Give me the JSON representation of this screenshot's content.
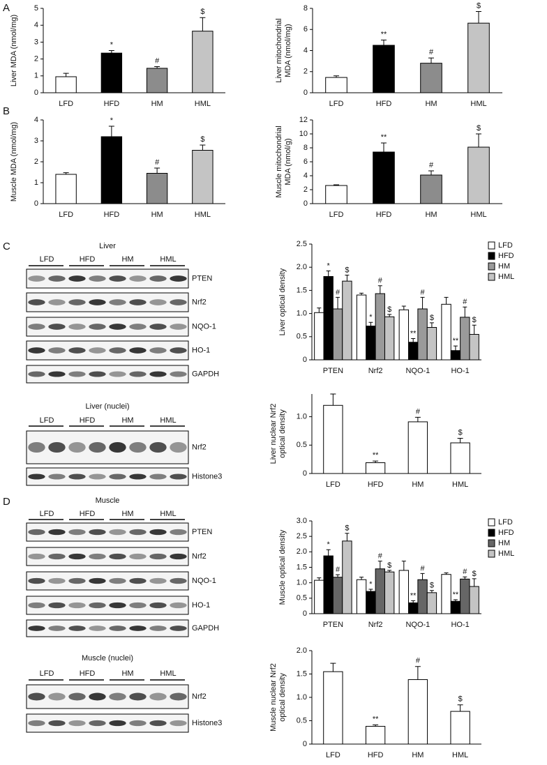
{
  "panels": [
    "A",
    "B",
    "C",
    "D"
  ],
  "chart_data": [
    {
      "type": "bar",
      "ylabel": [
        "Liver MDA (nmol/mg)"
      ],
      "categories": [
        "LFD",
        "HFD",
        "HM",
        "HML"
      ],
      "values": [
        0.95,
        2.35,
        1.45,
        3.65
      ],
      "errors": [
        0.2,
        0.15,
        0.1,
        0.8
      ],
      "markers": [
        null,
        "*",
        "#",
        "$"
      ],
      "colors": [
        "#ffffff",
        "#000000",
        "#8c8c8c",
        "#c4c4c4"
      ],
      "ylim": [
        0,
        5
      ],
      "yticks": [
        0,
        1,
        2,
        3,
        4,
        5
      ]
    },
    {
      "type": "bar",
      "ylabel": [
        "Liver mitochondrial",
        "MDA (nmol/mg)"
      ],
      "categories": [
        "LFD",
        "HFD",
        "HM",
        "HML"
      ],
      "values": [
        1.45,
        4.5,
        2.8,
        6.6
      ],
      "errors": [
        0.15,
        0.5,
        0.5,
        1.1
      ],
      "markers": [
        null,
        "**",
        "#",
        "$"
      ],
      "colors": [
        "#ffffff",
        "#000000",
        "#8c8c8c",
        "#c4c4c4"
      ],
      "ylim": [
        0,
        8
      ],
      "yticks": [
        0,
        2,
        4,
        6,
        8
      ]
    },
    {
      "type": "bar",
      "ylabel": [
        "Muscle MDA (nmol/mg)"
      ],
      "categories": [
        "LFD",
        "HFD",
        "HM",
        "HML"
      ],
      "values": [
        1.4,
        3.2,
        1.45,
        2.55
      ],
      "errors": [
        0.08,
        0.5,
        0.25,
        0.25
      ],
      "markers": [
        null,
        "*",
        "#",
        "$"
      ],
      "colors": [
        "#ffffff",
        "#000000",
        "#8c8c8c",
        "#c4c4c4"
      ],
      "ylim": [
        0,
        4
      ],
      "yticks": [
        0,
        1,
        2,
        3,
        4
      ]
    },
    {
      "type": "bar",
      "ylabel": [
        "Muscle mitochondrial",
        "MDA (nmol/g)"
      ],
      "categories": [
        "LFD",
        "HFD",
        "HM",
        "HML"
      ],
      "values": [
        2.6,
        7.4,
        4.1,
        8.1
      ],
      "errors": [
        0.1,
        1.3,
        0.6,
        1.9
      ],
      "markers": [
        null,
        "**",
        "#",
        "$"
      ],
      "colors": [
        "#ffffff",
        "#000000",
        "#8c8c8c",
        "#c4c4c4"
      ],
      "ylim": [
        0,
        12
      ],
      "yticks": [
        0,
        2,
        4,
        6,
        8,
        10,
        12
      ]
    },
    {
      "type": "grouped_bar",
      "ylabel": [
        "Liver optical density"
      ],
      "categories": [
        "PTEN",
        "Nrf2",
        "NQO-1",
        "HO-1"
      ],
      "series": [
        {
          "name": "LFD",
          "color": "#ffffff",
          "values": [
            1.02,
            1.4,
            1.08,
            1.2
          ],
          "errors": [
            0.1,
            0.04,
            0.08,
            0.15
          ],
          "markers": [
            null,
            null,
            null,
            null
          ]
        },
        {
          "name": "HFD",
          "color": "#000000",
          "values": [
            1.8,
            0.73,
            0.38,
            0.2
          ],
          "errors": [
            0.12,
            0.08,
            0.08,
            0.1
          ],
          "markers": [
            "*",
            "*",
            "**",
            "**"
          ]
        },
        {
          "name": "HM",
          "color": "#9a9a9a",
          "values": [
            1.1,
            1.43,
            1.1,
            0.92
          ],
          "errors": [
            0.25,
            0.17,
            0.25,
            0.22
          ],
          "markers": [
            "#",
            "#",
            "#",
            "#"
          ]
        },
        {
          "name": "HML",
          "color": "#c4c4c4",
          "values": [
            1.7,
            0.93,
            0.7,
            0.55
          ],
          "errors": [
            0.13,
            0.05,
            0.1,
            0.2
          ],
          "markers": [
            "$",
            "$",
            "$",
            "$"
          ]
        }
      ],
      "legend": "upper right",
      "ylim": [
        0,
        2.5
      ],
      "yticks": [
        0,
        0.5,
        {
          "value": 1,
          "label": "1.0"
        },
        1.5,
        {
          "value": 2,
          "label": "2.0"
        },
        2.5
      ]
    },
    {
      "type": "bar",
      "ylabel": [
        "Liver nuclear Nrf2",
        "optical density"
      ],
      "categories": [
        "LFD",
        "HFD",
        "HM",
        "HML"
      ],
      "values": [
        1.2,
        0.19,
        0.91,
        0.54
      ],
      "errors": [
        0.2,
        0.03,
        0.08,
        0.08
      ],
      "markers": [
        null,
        "**",
        "#",
        "$"
      ],
      "colors": [
        "#ffffff",
        "#ffffff",
        "#ffffff",
        "#ffffff"
      ],
      "ylim": [
        0,
        1.4
      ],
      "yticks": [
        0,
        0.5,
        {
          "value": 1,
          "label": "1.0"
        }
      ]
    },
    {
      "type": "grouped_bar",
      "ylabel": [
        "Muscle optical density"
      ],
      "categories": [
        "PTEN",
        "Nrf2",
        "NQO-1",
        "HO-1"
      ],
      "series": [
        {
          "name": "LFD",
          "color": "#ffffff",
          "values": [
            1.08,
            1.1,
            1.4,
            1.27
          ],
          "errors": [
            0.08,
            0.08,
            0.3,
            0.05
          ],
          "markers": [
            null,
            null,
            null,
            null
          ]
        },
        {
          "name": "HFD",
          "color": "#000000",
          "values": [
            1.87,
            0.72,
            0.35,
            0.4
          ],
          "errors": [
            0.2,
            0.07,
            0.07,
            0.05
          ],
          "markers": [
            "*",
            "*",
            "**",
            "**"
          ]
        },
        {
          "name": "HM",
          "color": "#666666",
          "values": [
            1.18,
            1.45,
            1.1,
            1.12
          ],
          "errors": [
            0.08,
            0.25,
            0.2,
            0.07
          ],
          "markers": [
            "#",
            "#",
            "#",
            "#"
          ]
        },
        {
          "name": "HML",
          "color": "#c4c4c4",
          "values": [
            2.35,
            1.35,
            0.68,
            0.88
          ],
          "errors": [
            0.25,
            0.05,
            0.07,
            0.25
          ],
          "markers": [
            "$",
            "$",
            "$",
            "$"
          ]
        }
      ],
      "legend": "upper right",
      "ylim": [
        0,
        3
      ],
      "yticks": [
        0,
        0.5,
        {
          "value": 1,
          "label": "1.0"
        },
        1.5,
        {
          "value": 2,
          "label": "2.0"
        },
        2.5,
        {
          "value": 3,
          "label": "3.0"
        }
      ]
    },
    {
      "type": "bar",
      "ylabel": [
        "Muscle nuclear Nrf2",
        "optical density"
      ],
      "categories": [
        "LFD",
        "HFD",
        "HM",
        "HML"
      ],
      "values": [
        1.55,
        0.38,
        1.38,
        0.7
      ],
      "errors": [
        0.18,
        0.03,
        0.28,
        0.14
      ],
      "markers": [
        null,
        "**",
        "#",
        "$"
      ],
      "colors": [
        "#ffffff",
        "#ffffff",
        "#ffffff",
        "#ffffff"
      ],
      "ylim": [
        0,
        2
      ],
      "yticks": [
        0,
        0.5,
        {
          "value": 1,
          "label": "1.0"
        },
        1.5,
        {
          "value": 2,
          "label": "2.0"
        }
      ]
    }
  ],
  "blots": [
    {
      "title": "Liver",
      "groups": [
        "LFD",
        "HFD",
        "HM",
        "HML"
      ],
      "rows": [
        "PTEN",
        "Nrf2",
        "NQO-1",
        "HO-1",
        "GAPDH"
      ]
    },
    {
      "title": "Liver (nuclei)",
      "groups": [
        "LFD",
        "HFD",
        "HM",
        "HML"
      ],
      "rows": [
        "Nrf2",
        "Histone3"
      ]
    },
    {
      "title": "Muscle",
      "groups": [
        "LFD",
        "HFD",
        "HM",
        "HML"
      ],
      "rows": [
        "PTEN",
        "Nrf2",
        "NQO-1",
        "HO-1",
        "GAPDH"
      ]
    },
    {
      "title": "Muscle (nuclei)",
      "groups": [
        "LFD",
        "HFD",
        "HM",
        "HML"
      ],
      "rows": [
        "Nrf2",
        "Histone3"
      ]
    }
  ]
}
